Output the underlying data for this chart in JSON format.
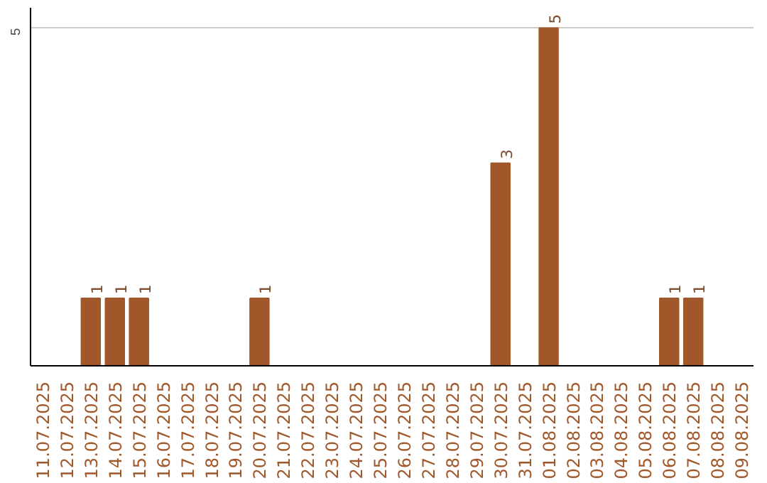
{
  "chart_data": {
    "type": "bar",
    "categories": [
      "11.07.2025",
      "12.07.2025",
      "13.07.2025",
      "14.07.2025",
      "15.07.2025",
      "16.07.2025",
      "17.07.2025",
      "18.07.2025",
      "19.07.2025",
      "20.07.2025",
      "21.07.2025",
      "22.07.2025",
      "23.07.2025",
      "24.07.2025",
      "25.07.2025",
      "26.07.2025",
      "27.07.2025",
      "28.07.2025",
      "29.07.2025",
      "30.07.2025",
      "31.07.2025",
      "01.08.2025",
      "02.08.2025",
      "03.08.2025",
      "04.08.2025",
      "05.08.2025",
      "06.08.2025",
      "07.08.2025",
      "08.08.2025",
      "09.08.2025"
    ],
    "values": [
      0,
      0,
      1,
      1,
      1,
      0,
      0,
      0,
      0,
      1,
      0,
      0,
      0,
      0,
      0,
      0,
      0,
      0,
      0,
      3,
      0,
      5,
      0,
      0,
      0,
      0,
      1,
      1,
      0,
      0
    ],
    "value_labels": [
      null,
      null,
      "1",
      "1",
      "1",
      null,
      null,
      null,
      null,
      "1",
      null,
      null,
      null,
      null,
      null,
      null,
      null,
      null,
      null,
      "3",
      null,
      "5",
      null,
      null,
      null,
      null,
      "1",
      "1",
      null,
      null
    ],
    "color": "#a0582a",
    "ylim": [
      0,
      5.3
    ],
    "yticks": [
      5
    ],
    "grid": "y"
  }
}
